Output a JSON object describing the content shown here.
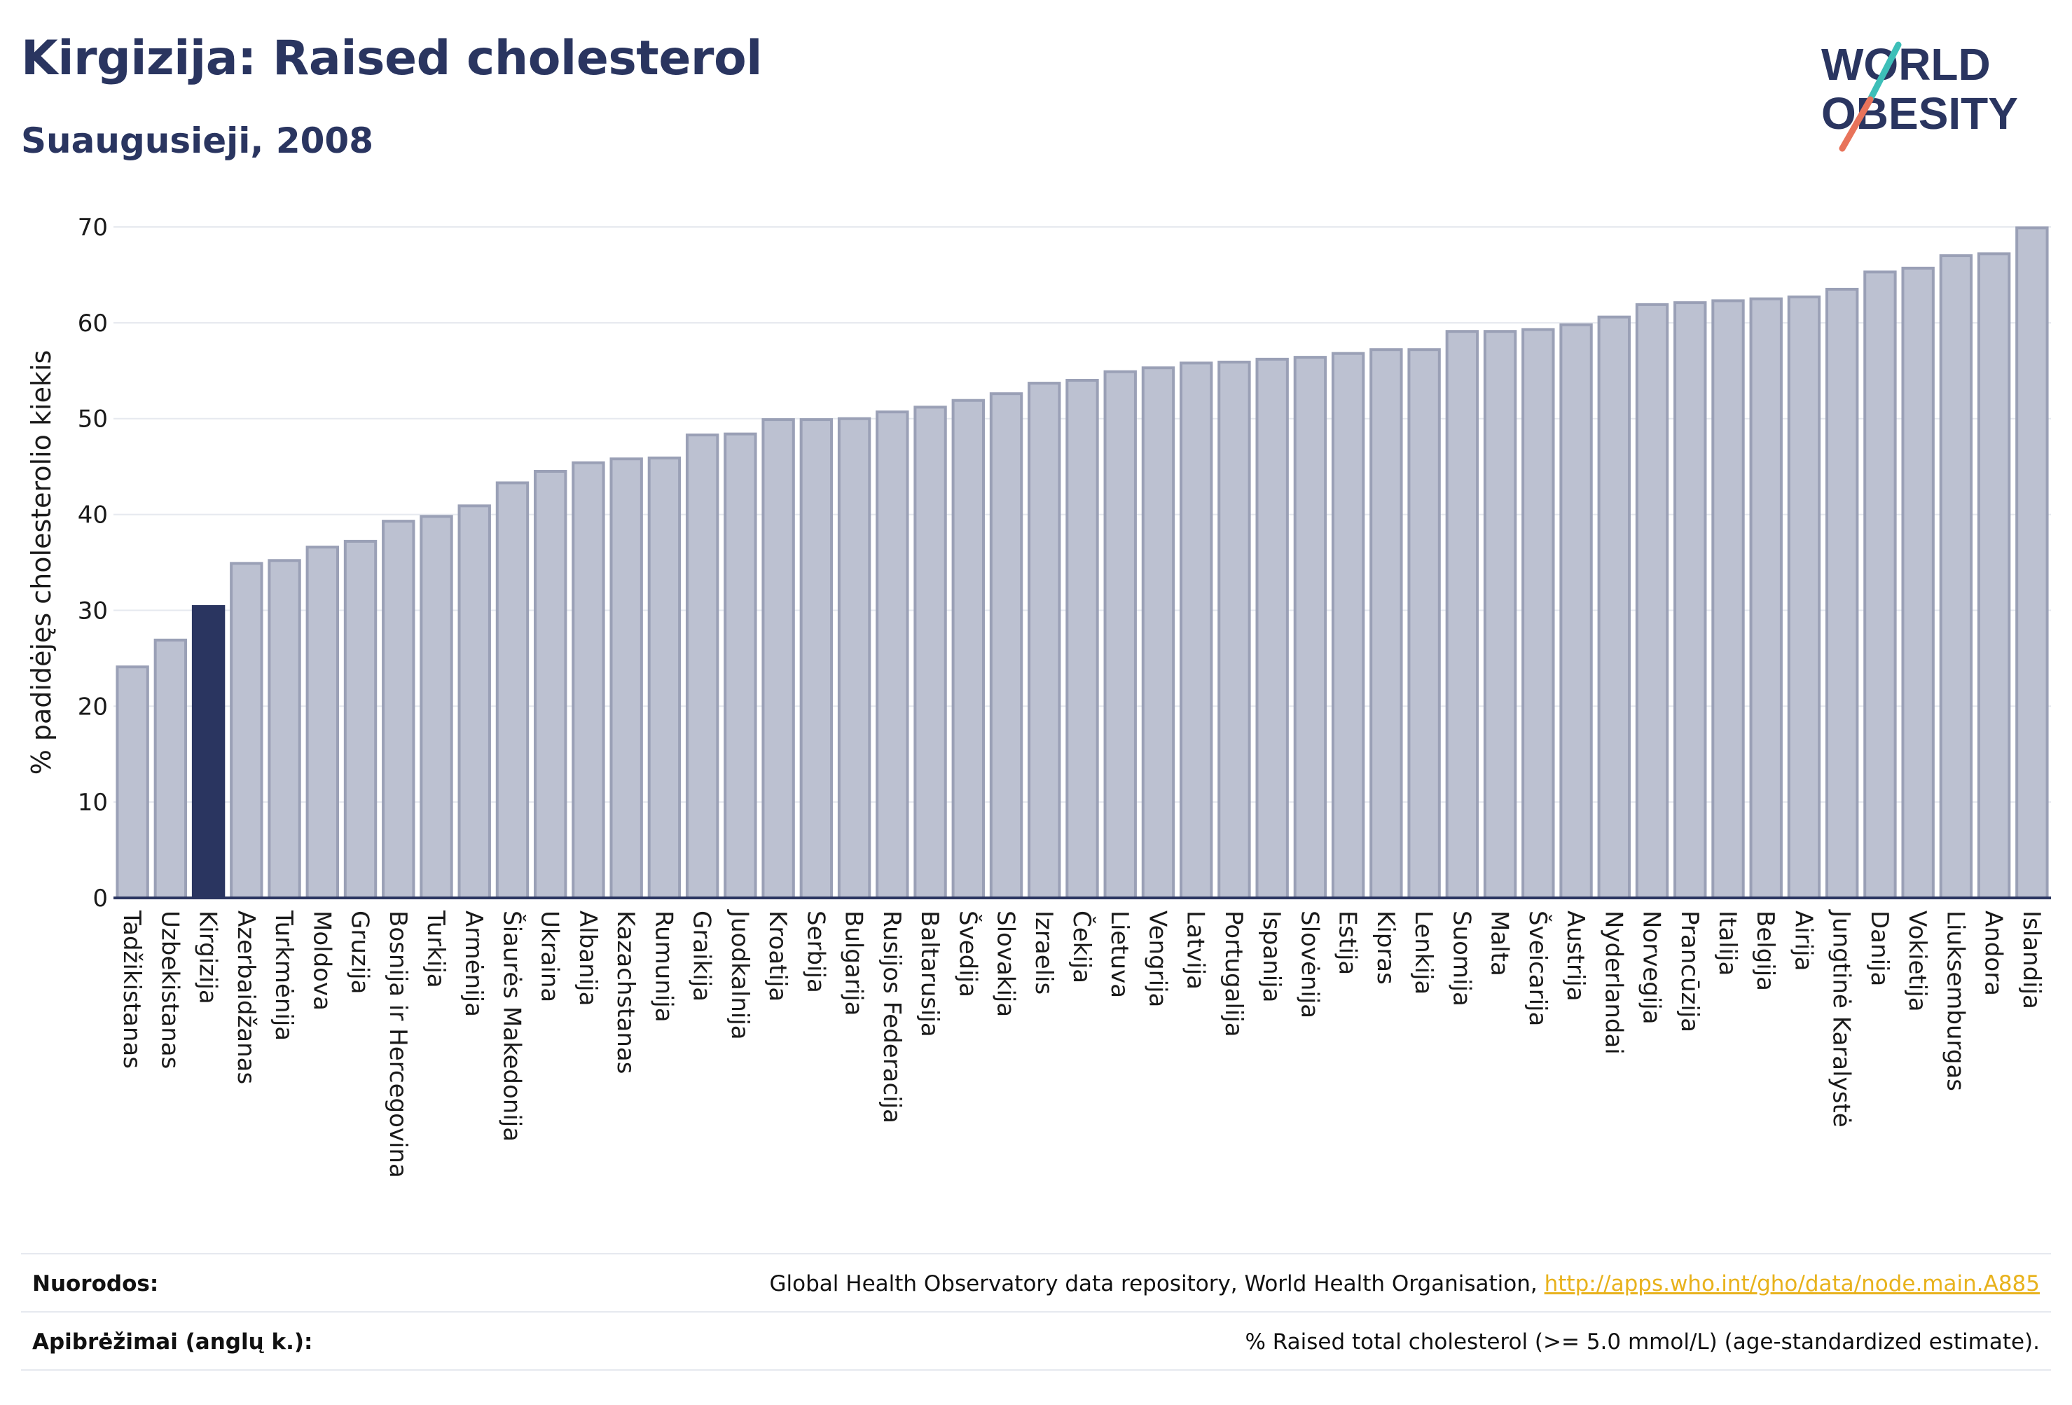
{
  "header": {
    "title": "Kirgizija: Raised cholesterol",
    "subtitle": "Suaugusieji, 2008"
  },
  "logo": {
    "line1": "WORLD",
    "line2": "OBESITY"
  },
  "colors": {
    "title": "#2a3560",
    "bar_default": "#bcc1d1",
    "bar_default_stroke": "#9aa0b6",
    "bar_highlight": "#2a3560",
    "axis": "#2a3560",
    "grid": "#e6e9ef",
    "link": "#e8b21c",
    "logo_teal": "#3dbfb8",
    "logo_coral": "#e8735a"
  },
  "chart_data": {
    "type": "bar",
    "ylabel": "% padidėjęs cholesterolio kiekis",
    "ylim": [
      0,
      70
    ],
    "yticks": [
      0,
      10,
      20,
      30,
      40,
      50,
      60,
      70
    ],
    "grid": true,
    "highlight": "Kirgizija",
    "categories": [
      "Tadžikistanas",
      "Uzbekistanas",
      "Kirgizija",
      "Azerbaidžanas",
      "Turkmėnija",
      "Moldova",
      "Gruzija",
      "Bosnija ir Hercegovina",
      "Turkija",
      "Armėnija",
      "Šiaurės Makedonija",
      "Ukraina",
      "Albanija",
      "Kazachstanas",
      "Rumunija",
      "Graikija",
      "Juodkalnija",
      "Kroatija",
      "Serbija",
      "Bulgarija",
      "Rusijos Federacija",
      "Baltarusija",
      "Švedija",
      "Slovakija",
      "Izraelis",
      "Čekija",
      "Lietuva",
      "Vengrija",
      "Latvija",
      "Portugalija",
      "Ispanija",
      "Slovėnija",
      "Estija",
      "Kipras",
      "Lenkija",
      "Suomija",
      "Malta",
      "Šveicarija",
      "Austrija",
      "Nyderlandai",
      "Norvegija",
      "Prancūzija",
      "Italija",
      "Belgija",
      "Airija",
      "Jungtinė Karalystė",
      "Danija",
      "Vokietija",
      "Liuksemburgas",
      "Andora",
      "Islandija"
    ],
    "values": [
      24.1,
      26.9,
      30.4,
      34.9,
      35.2,
      36.6,
      37.2,
      39.3,
      39.8,
      40.9,
      43.3,
      44.5,
      45.4,
      45.8,
      45.9,
      48.3,
      48.4,
      49.9,
      49.9,
      50.0,
      50.7,
      51.2,
      51.9,
      52.6,
      53.7,
      54.0,
      54.9,
      55.3,
      55.8,
      55.9,
      56.2,
      56.4,
      56.8,
      57.2,
      57.2,
      59.1,
      59.1,
      59.3,
      59.8,
      60.6,
      61.9,
      62.1,
      62.3,
      62.5,
      62.7,
      63.5,
      65.3,
      65.7,
      67.0,
      67.2,
      69.9
    ]
  },
  "footer": {
    "sources_label": "Nuorodos:",
    "sources_text": "Global Health Observatory data repository, World Health Organisation, ",
    "sources_link": "http://apps.who.int/gho/data/node.main.A885",
    "definitions_label": "Apibrėžimai (anglų k.):",
    "definitions_text": "% Raised total cholesterol (>= 5.0 mmol/L) (age-standardized estimate)."
  }
}
